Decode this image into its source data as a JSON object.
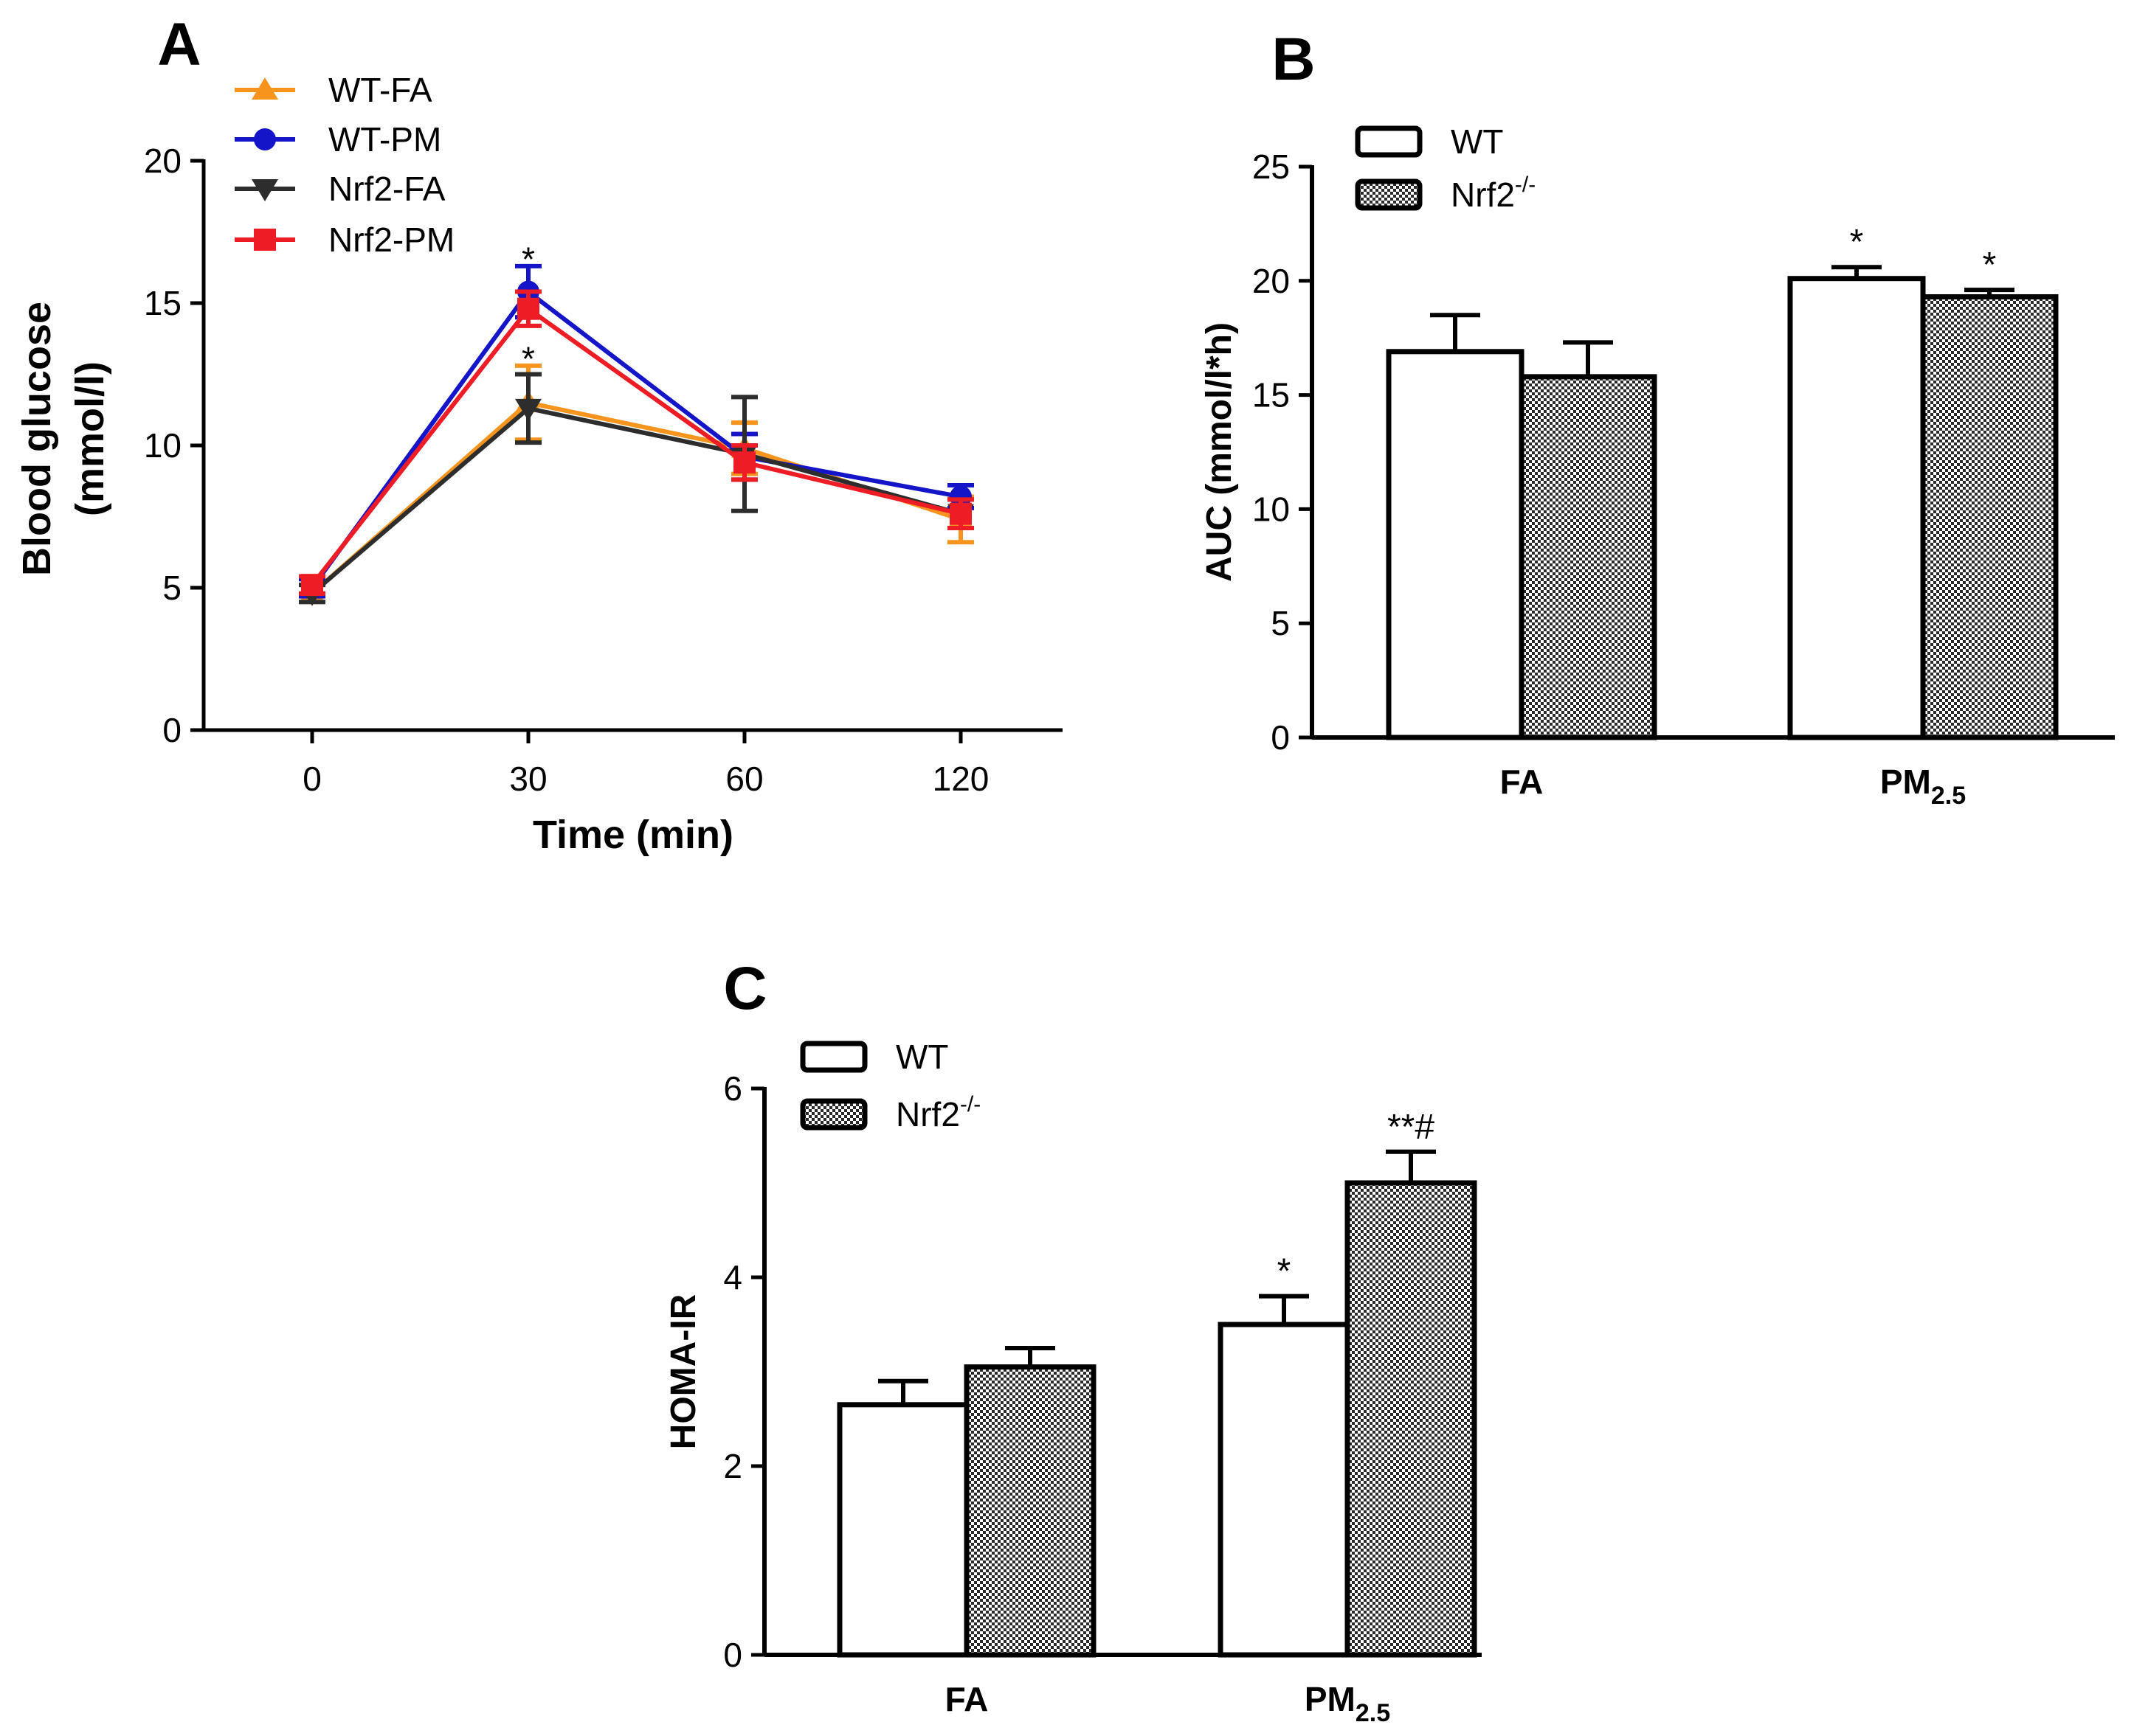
{
  "chart_data": [
    {
      "panel_label": "A",
      "type": "line",
      "xlabel": "Time (min)",
      "ylabel_lines": [
        "Blood glucose",
        "(mmol/l)"
      ],
      "categories": [
        "0",
        "30",
        "60",
        "120"
      ],
      "ylim": [
        0,
        20
      ],
      "yticks": [
        "0",
        "5",
        "10",
        "15",
        "20"
      ],
      "series": [
        {
          "name": "WT-FA",
          "color": "#f7941d",
          "marker": "triangle-up",
          "values": [
            4.8,
            11.5,
            9.9,
            7.4
          ],
          "errors": [
            0.3,
            1.3,
            0.9,
            0.8
          ]
        },
        {
          "name": "WT-PM",
          "color": "#1414c8",
          "marker": "circle",
          "values": [
            5.0,
            15.4,
            9.6,
            8.2
          ],
          "errors": [
            0.3,
            0.9,
            0.8,
            0.4
          ]
        },
        {
          "name": "Nrf2-FA",
          "color": "#2d2d2d",
          "marker": "triangle-down",
          "values": [
            4.8,
            11.3,
            9.7,
            7.6
          ],
          "errors": [
            0.3,
            1.2,
            2.0,
            0.5
          ]
        },
        {
          "name": "Nrf2-PM",
          "color": "#ee1c25",
          "marker": "square",
          "values": [
            5.1,
            14.8,
            9.4,
            7.6
          ],
          "errors": [
            0.3,
            0.6,
            0.6,
            0.5
          ]
        }
      ],
      "annotations": [
        {
          "text": "*",
          "category": "30",
          "y": 16.7
        },
        {
          "text": "*",
          "category": "30",
          "y": 13.2
        }
      ]
    },
    {
      "panel_label": "B",
      "type": "bar",
      "xlabel": "",
      "ylabel": "AUC (mmol/l*h)",
      "categories": [
        "FA",
        "PM"
      ],
      "category_subscripts": [
        "",
        "2.5"
      ],
      "ylim": [
        0,
        25
      ],
      "yticks": [
        "0",
        "5",
        "10",
        "15",
        "20",
        "25"
      ],
      "series": [
        {
          "name": "WT",
          "legend_super": "",
          "fill": "white",
          "values": [
            16.9,
            20.1
          ],
          "errors": [
            1.6,
            0.5
          ]
        },
        {
          "name": "Nrf2",
          "legend_super": "-/-",
          "fill": "hatch",
          "values": [
            15.8,
            19.3
          ],
          "errors": [
            1.5,
            0.3
          ]
        }
      ],
      "annotations": [
        {
          "text": "*",
          "category": 1,
          "series": 0
        },
        {
          "text": "*",
          "category": 1,
          "series": 1
        }
      ]
    },
    {
      "panel_label": "C",
      "type": "bar",
      "xlabel": "",
      "ylabel": "HOMA-IR",
      "categories": [
        "FA",
        "PM"
      ],
      "category_subscripts": [
        "",
        "2.5"
      ],
      "ylim": [
        0,
        6
      ],
      "yticks": [
        "0",
        "2",
        "4",
        "6"
      ],
      "series": [
        {
          "name": "WT",
          "legend_super": "",
          "fill": "white",
          "values": [
            2.65,
            3.5
          ],
          "errors": [
            0.25,
            0.3
          ]
        },
        {
          "name": "Nrf2",
          "legend_super": "-/-",
          "fill": "hatch",
          "values": [
            3.05,
            5.0
          ],
          "errors": [
            0.2,
            0.33
          ]
        }
      ],
      "annotations": [
        {
          "text": "*",
          "category": 1,
          "series": 0
        },
        {
          "text": "**#",
          "category": 1,
          "series": 1
        }
      ]
    }
  ]
}
